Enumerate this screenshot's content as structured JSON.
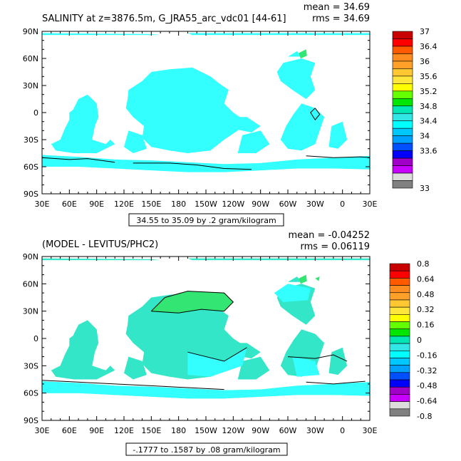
{
  "colors": {
    "ocean_low": "#33ffff",
    "ocean_mid": "#33e6c8",
    "land": "#ffffff",
    "contour": "#000000"
  },
  "chart_data": [
    {
      "type": "heatmap",
      "title": "SALINITY at z=3876.5m, G_JRA55_arc_vdc01 [44-61]",
      "mean_label": "mean = 34.69",
      "rms_label": "rms = 34.69",
      "range_label": "34.55 to 35.09 by .2 gram/kilogram",
      "x_ticks": [
        "30E",
        "60E",
        "90E",
        "120E",
        "150E",
        "180",
        "150W",
        "120W",
        "90W",
        "60W",
        "30W",
        "0",
        "30E"
      ],
      "y_ticks": [
        "90N",
        "60N",
        "30N",
        "0",
        "30S",
        "60S",
        "90S"
      ],
      "colorbar": {
        "labels": [
          "37",
          "36.4",
          "36",
          "35.6",
          "35.2",
          "34.8",
          "34.4",
          "34",
          "33.6",
          "33"
        ],
        "colors": [
          "#c80000",
          "#ff0000",
          "#ff5a00",
          "#ff8c1e",
          "#ffa028",
          "#ffc832",
          "#ffe63c",
          "#ffff00",
          "#64ff00",
          "#00e600",
          "#00e6b4",
          "#32e6e6",
          "#00ffff",
          "#00c8ff",
          "#00a0ff",
          "#0050ff",
          "#0000ff",
          "#a000c8",
          "#c800ff",
          "#dcdcdc",
          "#808080"
        ]
      }
    },
    {
      "type": "heatmap",
      "title": "(MODEL - LEVITUS/PHC2)",
      "mean_label": "mean = -0.04252",
      "rms_label": "rms = 0.06119",
      "range_label": "-.1777 to .1587 by .08 gram/kilogram",
      "x_ticks": [
        "30E",
        "60E",
        "90E",
        "120E",
        "150E",
        "180",
        "150W",
        "120W",
        "90W",
        "60W",
        "30W",
        "0",
        "30E"
      ],
      "y_ticks": [
        "90N",
        "60N",
        "30N",
        "0",
        "30S",
        "60S",
        "90S"
      ],
      "colorbar": {
        "labels": [
          "0.8",
          "0.64",
          "0.48",
          "0.32",
          "0.16",
          "0",
          "-0.16",
          "-0.32",
          "-0.48",
          "-0.64",
          "-0.8"
        ],
        "colors": [
          "#c80000",
          "#ff0000",
          "#ff5a00",
          "#ff8c1e",
          "#ffa028",
          "#ffc832",
          "#ffe63c",
          "#ffff00",
          "#64ff00",
          "#00e600",
          "#00e6b4",
          "#32e6e6",
          "#00ffff",
          "#00c8ff",
          "#00a0ff",
          "#0050ff",
          "#0000ff",
          "#a000c8",
          "#c800ff",
          "#dcdcdc",
          "#808080"
        ]
      }
    }
  ]
}
